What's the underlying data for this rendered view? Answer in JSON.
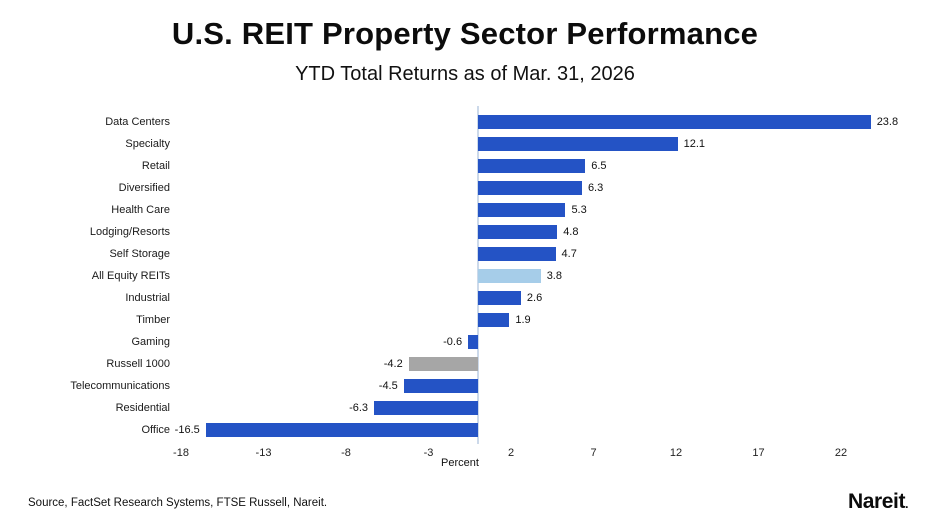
{
  "title": "U.S. REIT Property Sector Performance",
  "subtitle": "YTD Total Returns as of Mar. 31, 2026",
  "source_note": "Source, FactSet Research Systems, FTSE Russell, Nareit.",
  "logo": {
    "text": "Nareit",
    "dot": "."
  },
  "colors": {
    "sector": "#2453c5",
    "all_equity": "#a6cde9",
    "benchmark": "#a6a6a6",
    "axis_line": "#ccd9ea",
    "text": "#111111"
  },
  "chart_data": {
    "type": "bar",
    "orientation": "horizontal",
    "title": "U.S. REIT Property Sector Performance",
    "subtitle": "YTD Total Returns as of Mar. 31, 2026",
    "xlabel": "Percent",
    "ylabel": "",
    "grid": false,
    "legend": false,
    "value_labels": true,
    "x_ticks": [
      -18,
      -13,
      -8,
      -3,
      2,
      7,
      12,
      17,
      22
    ],
    "xlim": [
      -18.5,
      26
    ],
    "categories": [
      "Data Centers",
      "Specialty",
      "Retail",
      "Diversified",
      "Health Care",
      "Lodging/Resorts",
      "Self Storage",
      "All Equity REITs",
      "Industrial",
      "Timber",
      "Gaming",
      "Russell 1000",
      "Telecommunications",
      "Residential",
      "Office"
    ],
    "values": [
      23.8,
      12.1,
      6.5,
      6.3,
      5.3,
      4.8,
      4.7,
      3.8,
      2.6,
      1.9,
      -0.6,
      -4.2,
      -4.5,
      -6.3,
      -16.5
    ],
    "bar_roles": [
      "sector",
      "sector",
      "sector",
      "sector",
      "sector",
      "sector",
      "sector",
      "all_equity",
      "sector",
      "sector",
      "sector",
      "benchmark",
      "sector",
      "sector",
      "sector"
    ]
  }
}
